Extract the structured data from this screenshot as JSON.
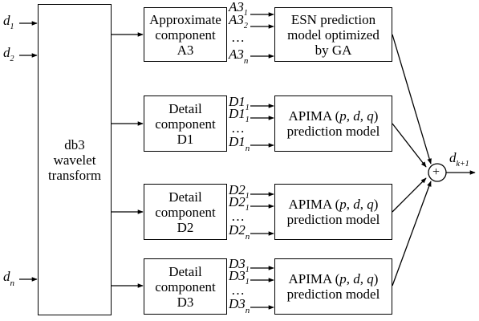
{
  "inputs": {
    "d1": {
      "base": "d",
      "sub": "1"
    },
    "d2": {
      "base": "d",
      "sub": "2"
    },
    "dn": {
      "base": "d",
      "sub": "n"
    }
  },
  "wavelet_box": {
    "line1": "db3",
    "line2": "wavelet",
    "line3": "transform"
  },
  "components": [
    {
      "line1": "Approximate",
      "line2": "component",
      "line3": "A3"
    },
    {
      "line1": "Detail",
      "line2": "component",
      "line3": "D1"
    },
    {
      "line1": "Detail",
      "line2": "component",
      "line3": "D2"
    },
    {
      "line1": "Detail",
      "line2": "component",
      "line3": "D3"
    }
  ],
  "subseries": [
    {
      "base": "A3",
      "s1": "1",
      "s2": "2",
      "sn": "n",
      "dots": "…"
    },
    {
      "base": "D1",
      "s1": "1",
      "s2": "1",
      "sn": "n",
      "dots": "…"
    },
    {
      "base": "D2",
      "s1": "1",
      "s2": "1",
      "sn": "n",
      "dots": "…"
    },
    {
      "base": "D3",
      "s1": "1",
      "s2": "1",
      "sn": "n",
      "dots": "…"
    }
  ],
  "models": [
    {
      "line1": "ESN prediction",
      "line2": "model optimized",
      "line3": "by GA"
    },
    {
      "line1": "APIMA (",
      "p": "p",
      "c1": ", ",
      "d": "d",
      "c2": ", ",
      "q": "q",
      "close": ")",
      "line2": "prediction model"
    },
    {
      "line1": "APIMA (",
      "p": "p",
      "c1": ", ",
      "d": "d",
      "c2": ", ",
      "q": "q",
      "close": ")",
      "line2": "prediction model"
    },
    {
      "line1": "APIMA (",
      "p": "p",
      "c1": ", ",
      "d": "d",
      "c2": ", ",
      "q": "q",
      "close": ")",
      "line2": "prediction model"
    }
  ],
  "sum": {
    "symbol": "+"
  },
  "output": {
    "base": "d",
    "sub": "k+1"
  }
}
